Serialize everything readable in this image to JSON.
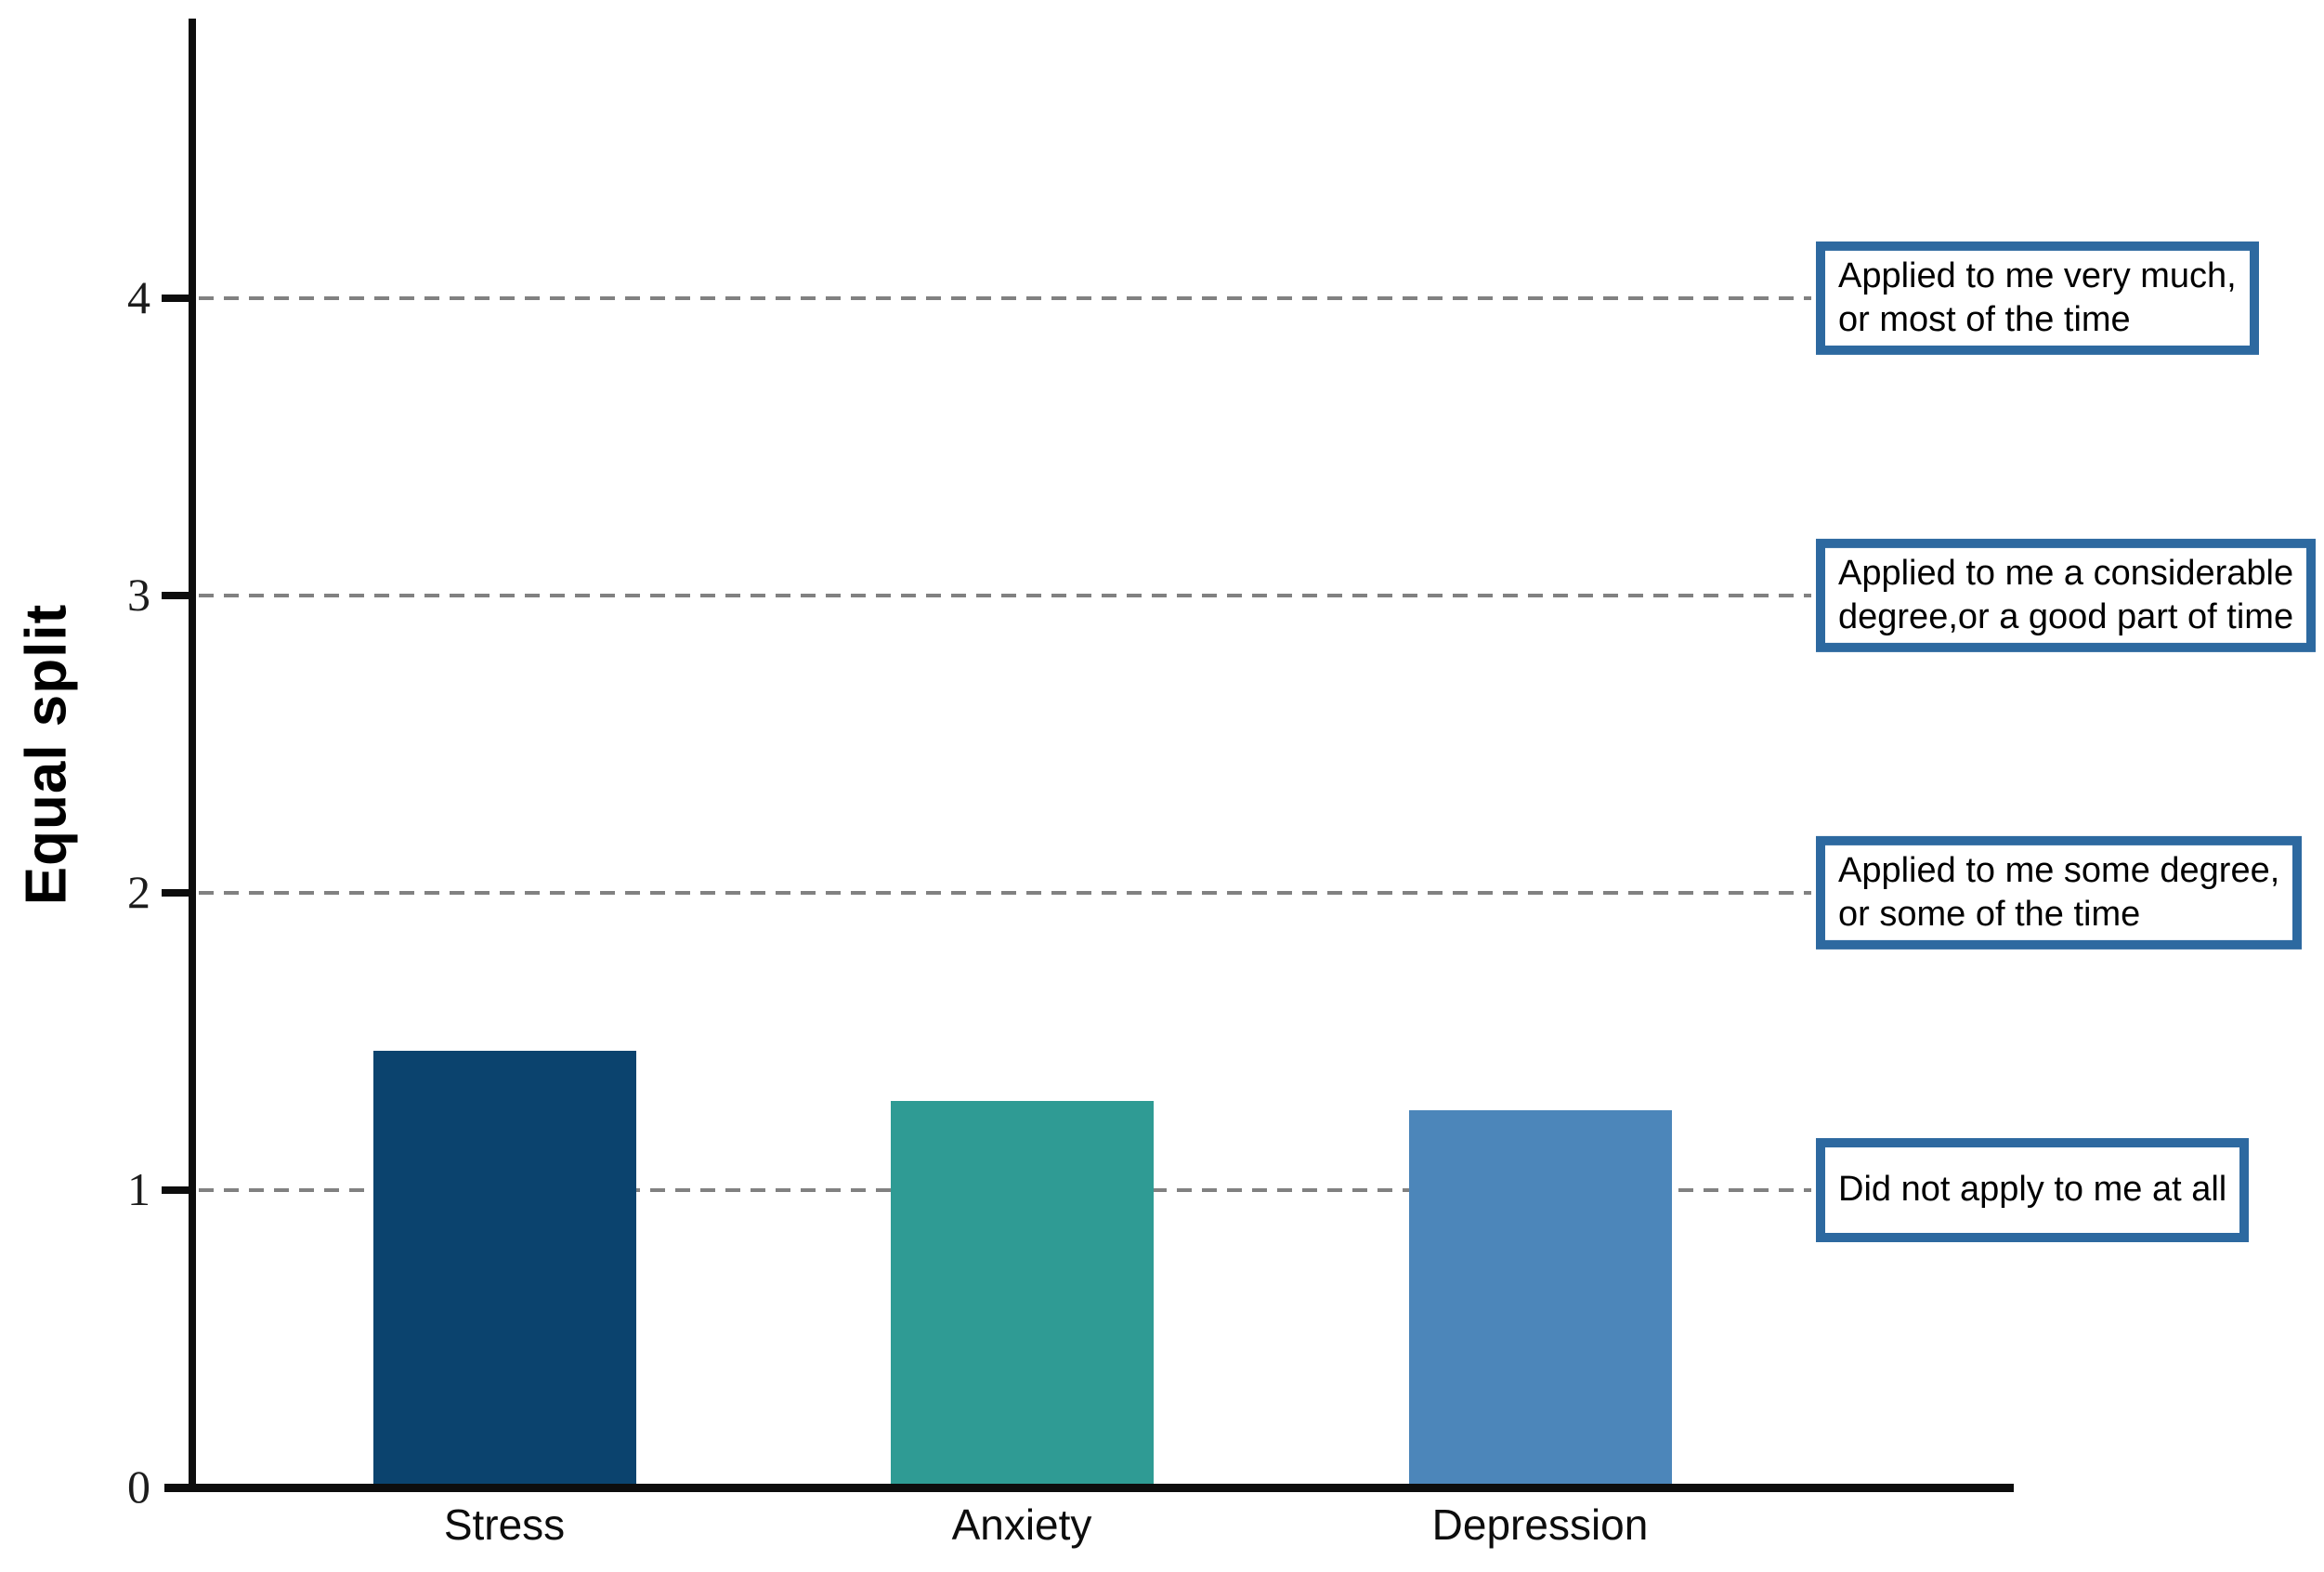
{
  "chart_data": {
    "type": "bar",
    "title": "",
    "ylabel": "Equal split",
    "xlabel": "",
    "categories": [
      "Stress",
      "Anxiety",
      "Depression"
    ],
    "values": [
      1.47,
      1.3,
      1.27
    ],
    "bar_colors": [
      "#0b436e",
      "#2f9b94",
      "#4c86ba"
    ],
    "ylim": [
      0,
      4.94
    ],
    "yticks": [
      0,
      1,
      2,
      3,
      4
    ],
    "grid": "horizontal dashed at y = 1, 2, 3, 4",
    "gridline_color": "#818181",
    "axis_color": "#0d0d0d",
    "legend_position": "none",
    "annotations": [
      {
        "value": 4,
        "lines": [
          "Applied to me very much,",
          "or most of the time"
        ]
      },
      {
        "value": 3,
        "lines": [
          "Applied to me a considerable",
          "degree,or a good part of time"
        ]
      },
      {
        "value": 2,
        "lines": [
          "Applied to me some degree,",
          "or some of the time"
        ]
      },
      {
        "value": 1,
        "lines": [
          "Did not apply to me at all"
        ]
      }
    ],
    "annotation_border_color": "#2d69a0",
    "annotation_text_color": "#000000"
  }
}
